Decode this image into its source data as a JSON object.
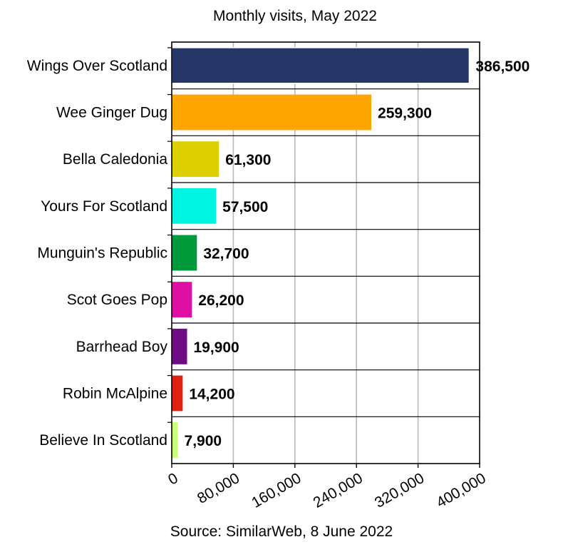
{
  "chart_data": {
    "type": "bar",
    "orientation": "horizontal",
    "title": "Monthly visits, May 2022",
    "source": "Source: SimilarWeb, 8 June 2022",
    "categories": [
      "Wings Over Scotland",
      "Wee Ginger Dug",
      "Bella Caledonia",
      "Yours For Scotland",
      "Munguin's Republic",
      "Scot Goes Pop",
      "Barrhead Boy",
      "Robin McAlpine",
      "Believe In Scotland"
    ],
    "values": [
      386500,
      259300,
      61300,
      57500,
      32700,
      26200,
      19900,
      14200,
      7900
    ],
    "value_labels": [
      "386,500",
      "259,300",
      "61,300",
      "57,500",
      "32,700",
      "26,200",
      "19,900",
      "14,200",
      "7,900"
    ],
    "colors": [
      "#253667",
      "#ffa500",
      "#ddd000",
      "#00f5e0",
      "#009a3c",
      "#dd10a2",
      "#700a85",
      "#e02010",
      "#ccff77"
    ],
    "xlim": [
      0,
      400000
    ],
    "xticks": [
      0,
      80000,
      160000,
      240000,
      320000,
      400000
    ],
    "xtick_labels": [
      "0",
      "80,000",
      "160,000",
      "240,000",
      "320,000",
      "400,000"
    ],
    "grid": true
  }
}
